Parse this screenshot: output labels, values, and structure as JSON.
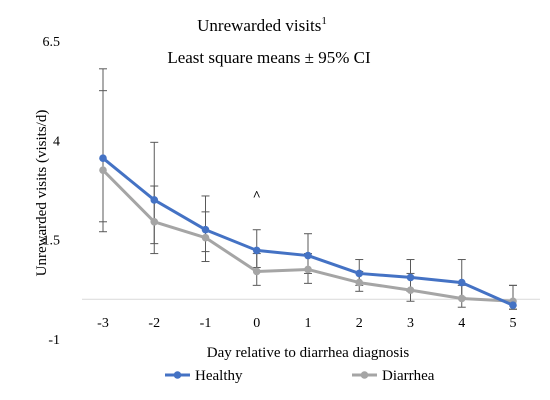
{
  "chart_data": {
    "type": "line",
    "title": "Unrewarded visits",
    "title_superscript": "1",
    "subtitle": "Least square means ± 95% CI",
    "xlabel": "Day relative to diarrhea diagnosis",
    "ylabel": "Unrewarded visits (visits/d)",
    "ylim": [
      -1,
      6.5
    ],
    "yticks": [
      -1,
      1.5,
      4,
      6.5
    ],
    "ytick_labels": [
      "-1",
      "1.5",
      "4",
      "6.5"
    ],
    "categories": [
      "-3",
      "-2",
      "-1",
      "0",
      "1",
      "2",
      "3",
      "4",
      "5"
    ],
    "grid": false,
    "legend_position": "bottom",
    "annotations": [
      {
        "text": "^",
        "category": "0",
        "y": 2.7
      }
    ],
    "series": [
      {
        "name": "Healthy",
        "color": "#4472C4",
        "values": [
          3.55,
          2.5,
          1.75,
          1.23,
          1.1,
          0.65,
          0.55,
          0.42,
          -0.15
        ],
        "ci_low": [
          1.7,
          1.4,
          1.2,
          0.8,
          0.65,
          0.35,
          0.2,
          0.05,
          -0.25
        ],
        "ci_high": [
          5.8,
          3.95,
          2.6,
          1.75,
          1.65,
          1.0,
          1.0,
          1.0,
          0.35
        ]
      },
      {
        "name": "Diarrhea",
        "color": "#A5A5A5",
        "values": [
          3.25,
          1.95,
          1.55,
          0.7,
          0.75,
          0.42,
          0.23,
          0.02,
          -0.05
        ],
        "ci_low": [
          1.95,
          1.15,
          0.95,
          0.35,
          0.4,
          0.2,
          -0.05,
          -0.2,
          -0.25
        ],
        "ci_high": [
          5.25,
          2.85,
          2.2,
          1.15,
          1.15,
          0.7,
          0.65,
          0.35,
          0.35
        ]
      }
    ]
  }
}
